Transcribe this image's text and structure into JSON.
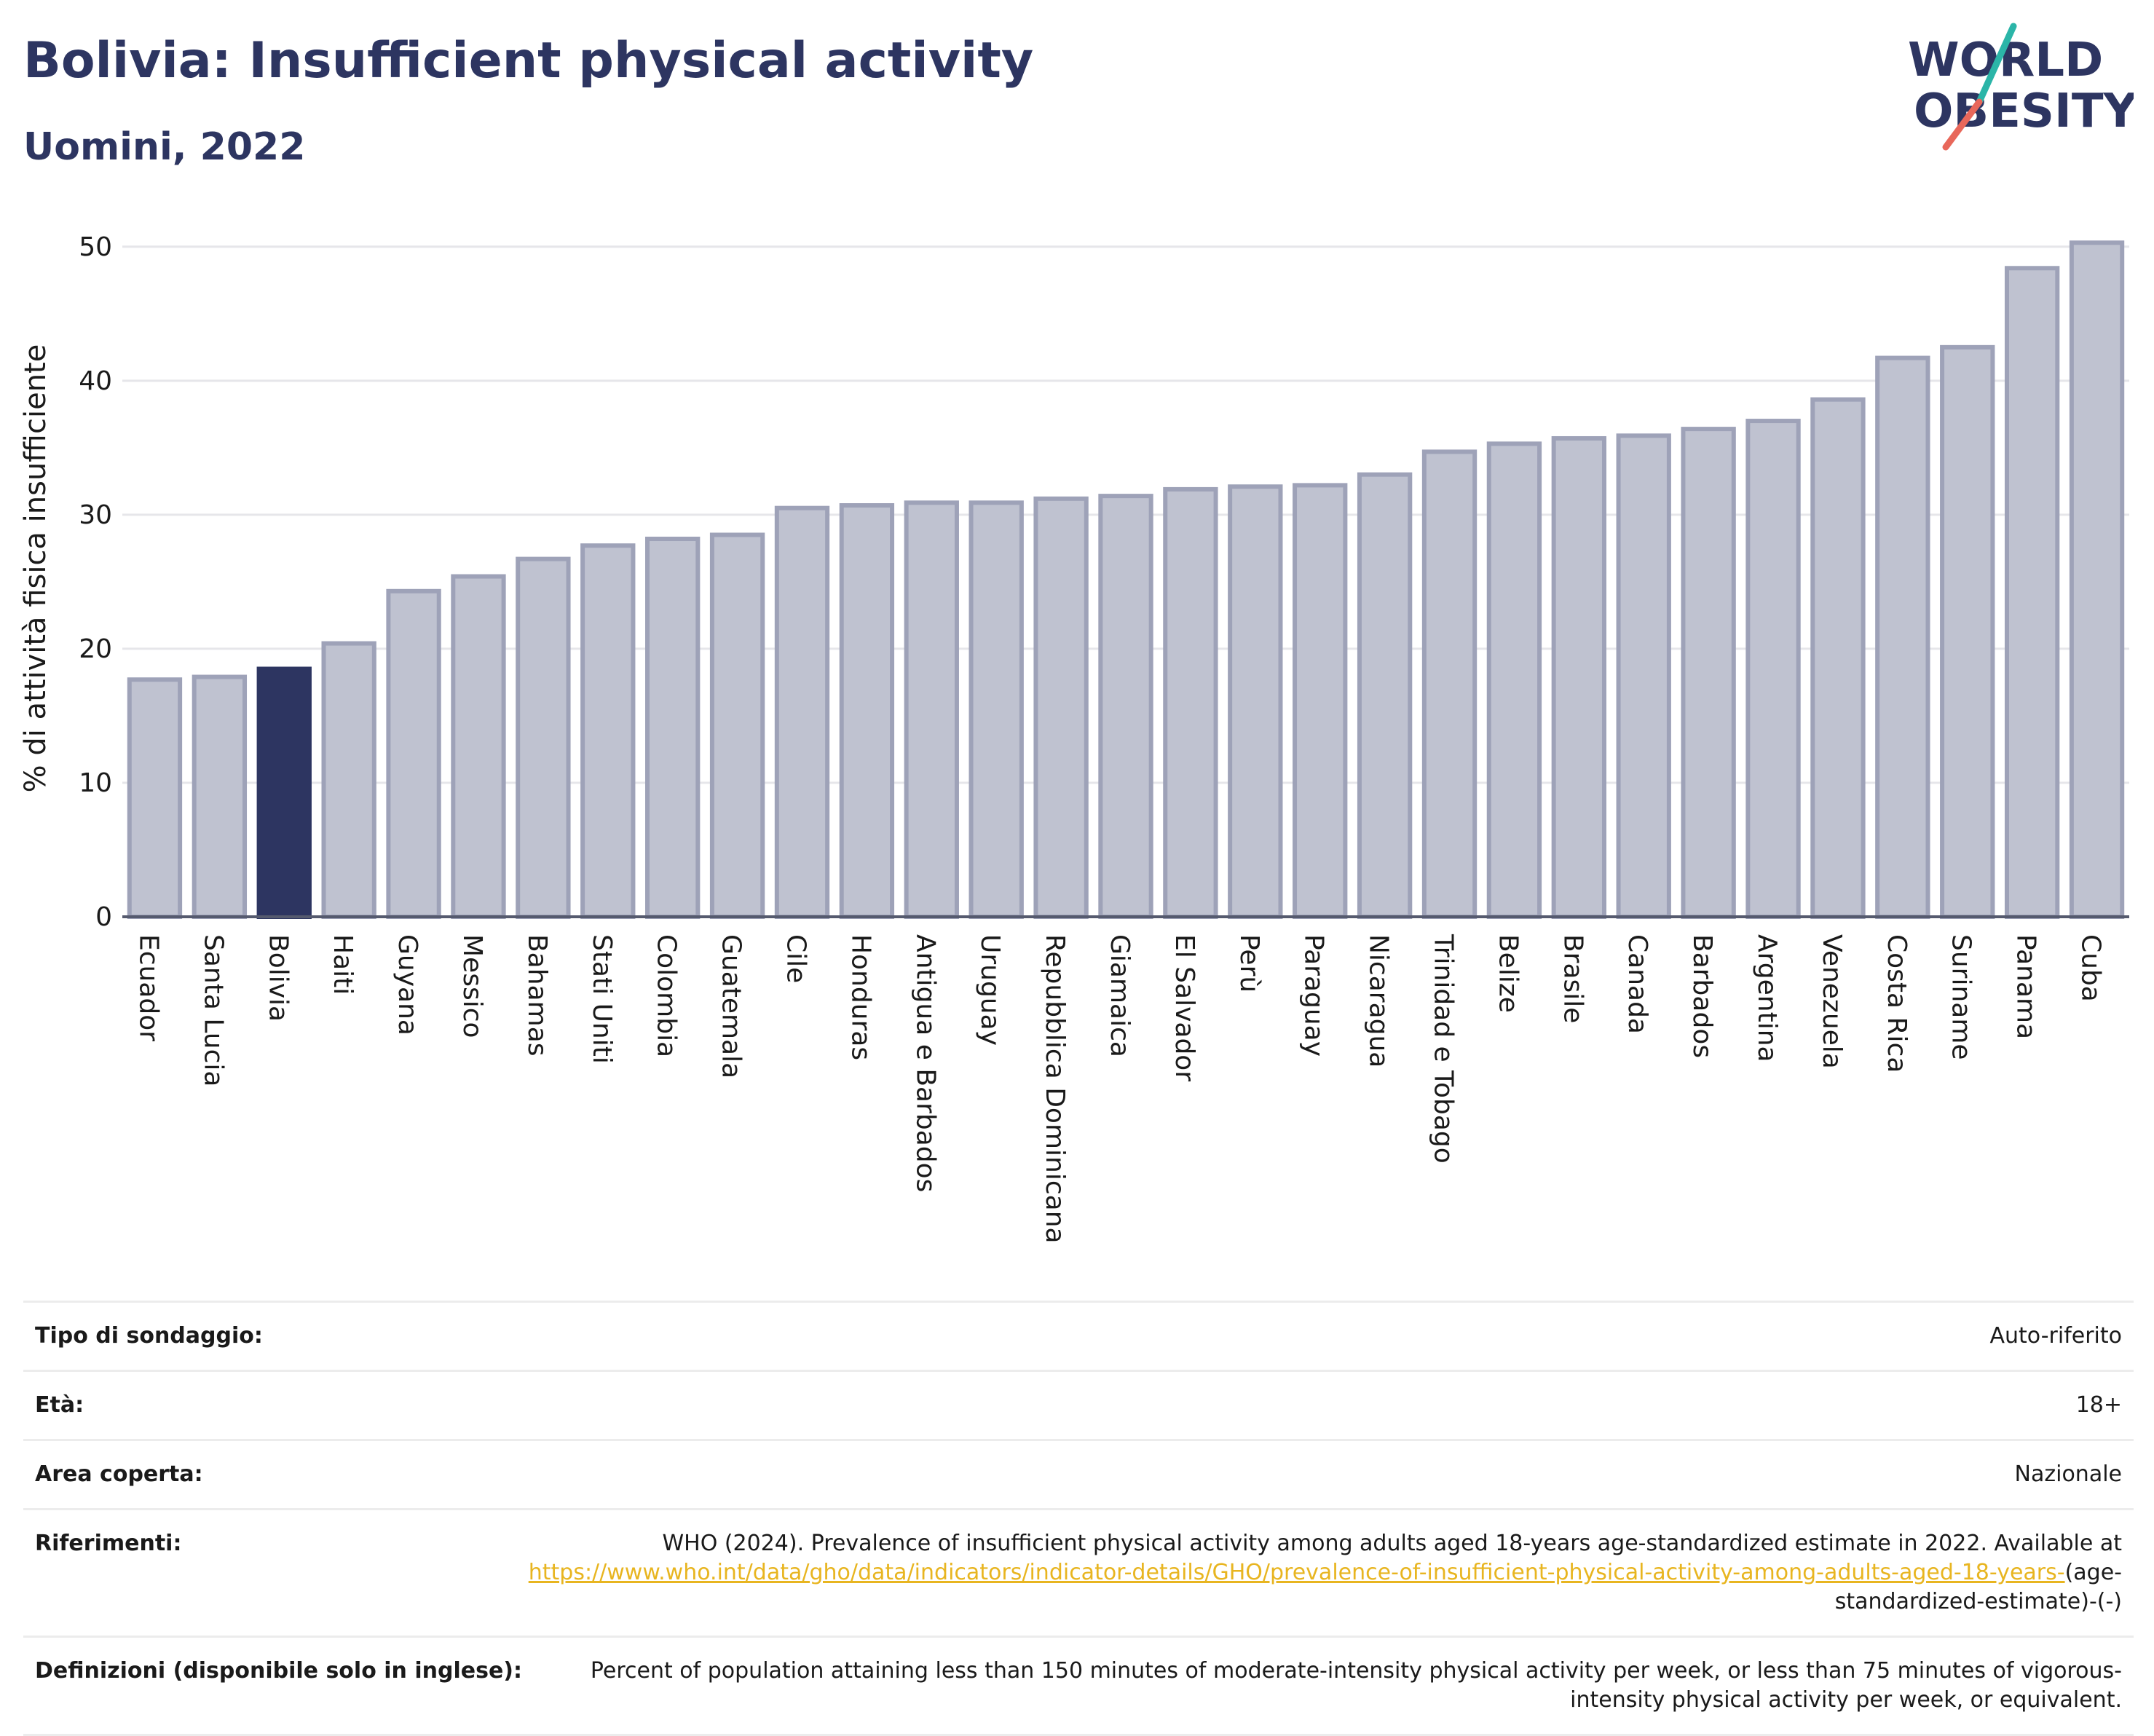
{
  "header": {
    "title": "Bolivia: Insufficient physical activity",
    "subtitle": "Uomini, 2022"
  },
  "logo": {
    "line1": "WORLD",
    "line2": "OBESITY",
    "colors": {
      "text": "#2d3561",
      "slash_top": "#2bb5a8",
      "slash_bottom": "#e8675a"
    }
  },
  "chart_data": {
    "type": "bar",
    "ylabel": "% di attività fisica insufficiente",
    "ylim": [
      0,
      52
    ],
    "yticks": [
      0,
      10,
      20,
      30,
      40,
      50
    ],
    "grid": true,
    "highlight": "Bolivia",
    "colors": {
      "bar": "#bfc2d0",
      "bar_edge": "#9ea2b8",
      "highlight": "#2d3561"
    },
    "categories": [
      "Ecuador",
      "Santa Lucia",
      "Bolivia",
      "Haiti",
      "Guyana",
      "Messico",
      "Bahamas",
      "Stati Uniti",
      "Colombia",
      "Guatemala",
      "Cile",
      "Honduras",
      "Antigua e Barbados",
      "Uruguay",
      "Repubblica Dominicana",
      "Giamaica",
      "El Salvador",
      "Perù",
      "Paraguay",
      "Nicaragua",
      "Trinidad e Tobago",
      "Belize",
      "Brasile",
      "Canada",
      "Barbados",
      "Argentina",
      "Venezuela",
      "Costa Rica",
      "Suriname",
      "Panama",
      "Cuba"
    ],
    "values": [
      17.7,
      17.9,
      18.5,
      20.4,
      24.3,
      25.4,
      26.7,
      27.7,
      28.2,
      28.5,
      30.5,
      30.7,
      30.9,
      30.9,
      31.2,
      31.4,
      31.9,
      32.1,
      32.2,
      33.0,
      34.7,
      35.3,
      35.7,
      35.9,
      36.4,
      37.0,
      38.6,
      41.7,
      42.5,
      48.4,
      50.3
    ]
  },
  "meta": [
    {
      "label": "Tipo di sondaggio:",
      "value": "Auto-riferito"
    },
    {
      "label": "Età:",
      "value": "18+"
    },
    {
      "label": "Area coperta:",
      "value": "Nazionale"
    },
    {
      "label": "Riferimenti:",
      "value_text": "WHO (2024). Prevalence of insufficient physical activity among adults aged 18-years age-standardized estimate in 2022. Available at",
      "value_link": "https://www.who.int/data/gho/data/indicators/indicator-details/GHO/prevalence-of-insufficient-physical-activity-among-adults-aged-18-years-",
      "value_tail": "(age-standardized-estimate)-(-)"
    },
    {
      "label": "Definizioni (disponibile solo in inglese):",
      "value": "Percent of population attaining less than 150 minutes of moderate-intensity physical activity per week, or less than 75 minutes of vigorous-intensity physical activity per week, or equivalent."
    }
  ]
}
